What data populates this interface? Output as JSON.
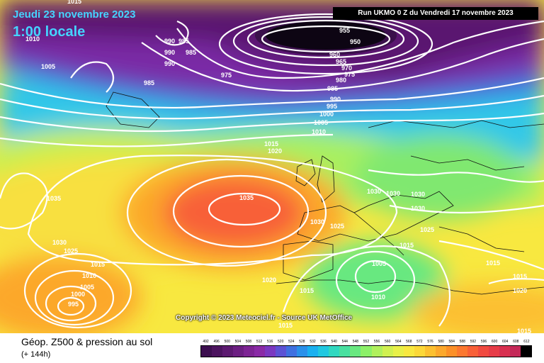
{
  "header": {
    "date": "Jeudi 23 novembre 2023",
    "local_time": "1:00 locale",
    "run_info": "Run UKMO 0 Z du Vendredi 17 novembre 2023",
    "copyright": "Copyright © 2023 Meteociel.fr - Source UK MetOffice"
  },
  "footer": {
    "title": "Géop. Z500 & pression au sol",
    "subtitle": "(+ 144h)"
  },
  "legend": {
    "values": [
      "492",
      "496",
      "500",
      "504",
      "508",
      "512",
      "516",
      "520",
      "524",
      "528",
      "532",
      "536",
      "540",
      "544",
      "548",
      "552",
      "556",
      "560",
      "564",
      "568",
      "572",
      "576",
      "580",
      "584",
      "588",
      "592",
      "596",
      "600",
      "604",
      "608",
      "612"
    ],
    "colors": [
      "#3c0f4f",
      "#4c145f",
      "#5c1a70",
      "#6c1f82",
      "#7d2494",
      "#8a2aa6",
      "#7a38c0",
      "#5c52d4",
      "#3f70e0",
      "#2a90ea",
      "#1ab0f0",
      "#20c8e0",
      "#30d8c0",
      "#48e0a0",
      "#68e880",
      "#8cf068",
      "#b0f05c",
      "#d0f050",
      "#e8f048",
      "#f8e840",
      "#fcd838",
      "#fcc030",
      "#fca82c",
      "#fc9028",
      "#fc7830",
      "#f86038",
      "#f04a40",
      "#e63c48",
      "#d83050",
      "#c42858",
      "#000000"
    ]
  },
  "pressure_labels": [
    {
      "text": "1015"
    },
    {
      "text": "1010"
    },
    {
      "text": "1005"
    },
    {
      "text": "990"
    },
    {
      "text": "985"
    },
    {
      "text": "990"
    },
    {
      "text": "985"
    },
    {
      "text": "990"
    },
    {
      "text": "985"
    },
    {
      "text": "975"
    },
    {
      "text": "955"
    },
    {
      "text": "950"
    },
    {
      "text": "960"
    },
    {
      "text": "965"
    },
    {
      "text": "970"
    },
    {
      "text": "975"
    },
    {
      "text": "980"
    },
    {
      "text": "985"
    },
    {
      "text": "990"
    },
    {
      "text": "995"
    },
    {
      "text": "1000"
    },
    {
      "text": "1005"
    },
    {
      "text": "1010"
    },
    {
      "text": "1015"
    },
    {
      "text": "1020"
    },
    {
      "text": "1035"
    },
    {
      "text": "1035"
    },
    {
      "text": "1030"
    },
    {
      "text": "1025"
    },
    {
      "text": "1015"
    },
    {
      "text": "1010"
    },
    {
      "text": "1005"
    },
    {
      "text": "1000"
    },
    {
      "text": "995"
    },
    {
      "text": "1030"
    },
    {
      "text": "1025"
    },
    {
      "text": "1030"
    },
    {
      "text": "1030"
    },
    {
      "text": "1030"
    },
    {
      "text": "1030"
    },
    {
      "text": "1025"
    },
    {
      "text": "1015"
    },
    {
      "text": "1005"
    },
    {
      "text": "1010"
    },
    {
      "text": "1015"
    },
    {
      "text": "1015"
    },
    {
      "text": "1020"
    },
    {
      "text": "1015"
    },
    {
      "text": "1015"
    },
    {
      "text": "1020"
    },
    {
      "text": "1015"
    }
  ]
}
